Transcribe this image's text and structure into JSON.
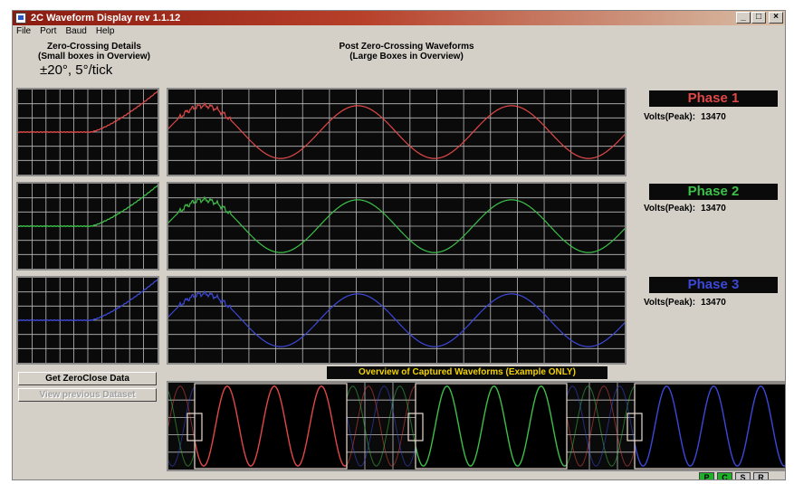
{
  "window": {
    "title": "2C Waveform Display  rev 1.1.12",
    "controls": {
      "minimize": "_",
      "maximize": "□",
      "close": "×"
    }
  },
  "menu": [
    "File",
    "Port",
    "Baud",
    "Help"
  ],
  "headers": {
    "left_line1": "Zero-Crossing Details",
    "left_line2": "(Small boxes in Overview)",
    "center_line1": "Post Zero-Crossing Waveforms",
    "center_line2": "(Large Boxes in Overview)",
    "scale": "±20°, 5°/tick"
  },
  "phases": [
    {
      "label": "Phase 1",
      "volts_label": "Volts(Peak):",
      "volts_value": "13470",
      "color": "#e04848"
    },
    {
      "label": "Phase 2",
      "volts_label": "Volts(Peak):",
      "volts_value": "13470",
      "color": "#3cc048"
    },
    {
      "label": "Phase 3",
      "volts_label": "Volts(Peak):",
      "volts_value": "13470",
      "color": "#3c48d8"
    }
  ],
  "buttons": {
    "get_data": "Get ZeroClose Data",
    "view_previous": "View previous Dataset"
  },
  "overview": {
    "title": "Overview of Captured Waveforms (Example ONLY)"
  },
  "status_indicators": [
    {
      "label": "P",
      "color": "#1fb02a"
    },
    {
      "label": "C",
      "color": "#1fb02a"
    },
    {
      "label": "S",
      "color": "#c8c8c8"
    },
    {
      "label": "R",
      "color": "#c8c8c8"
    }
  ]
}
